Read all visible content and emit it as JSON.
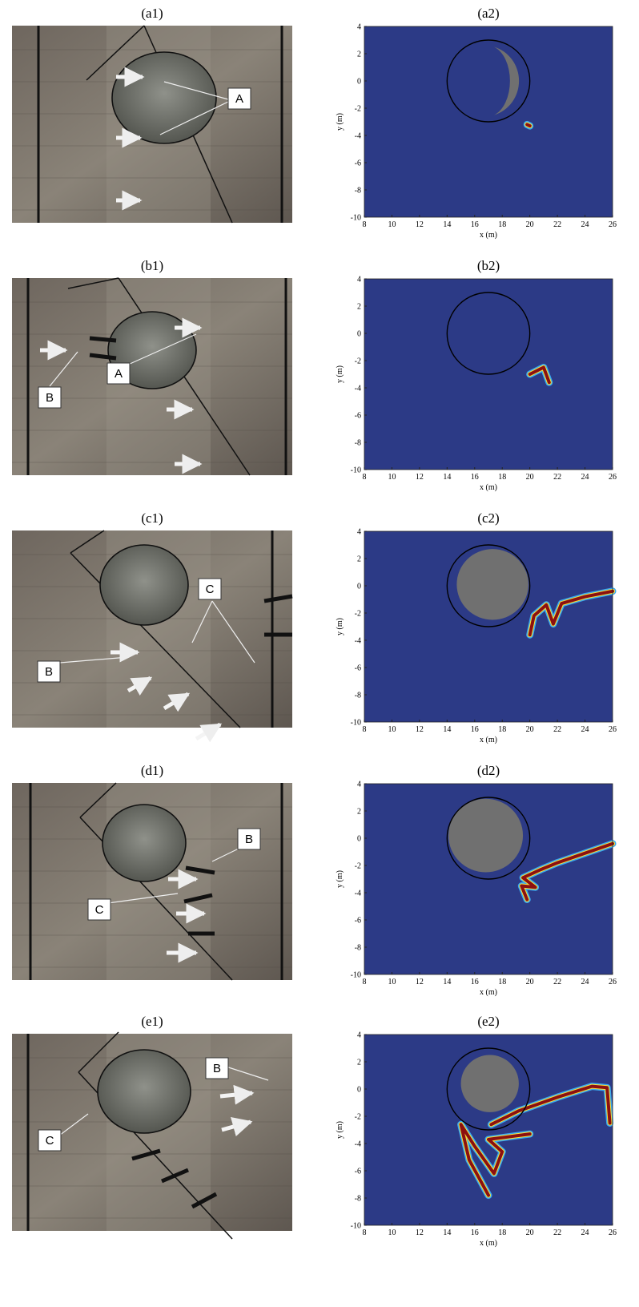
{
  "panels": [
    {
      "photo_label": "(a1)",
      "plot_label": "(a2)",
      "annotations": [
        "A"
      ]
    },
    {
      "photo_label": "(b1)",
      "plot_label": "(b2)",
      "annotations": [
        "B",
        "A"
      ]
    },
    {
      "photo_label": "(c1)",
      "plot_label": "(c2)",
      "annotations": [
        "C",
        "B"
      ]
    },
    {
      "photo_label": "(d1)",
      "plot_label": "(d2)",
      "annotations": [
        "B",
        "C"
      ]
    },
    {
      "photo_label": "(e1)",
      "plot_label": "(e2)",
      "annotations": [
        "B",
        "C"
      ]
    }
  ],
  "axes": {
    "x_label": "x (m)",
    "y_label": "y (m)",
    "xlim": [
      8,
      26
    ],
    "ylim": [
      -10,
      4
    ],
    "xticks": [
      8,
      10,
      12,
      14,
      16,
      18,
      20,
      22,
      24,
      26
    ],
    "yticks": [
      4,
      2,
      0,
      -2,
      -4,
      -6,
      -8,
      -10
    ]
  }
}
